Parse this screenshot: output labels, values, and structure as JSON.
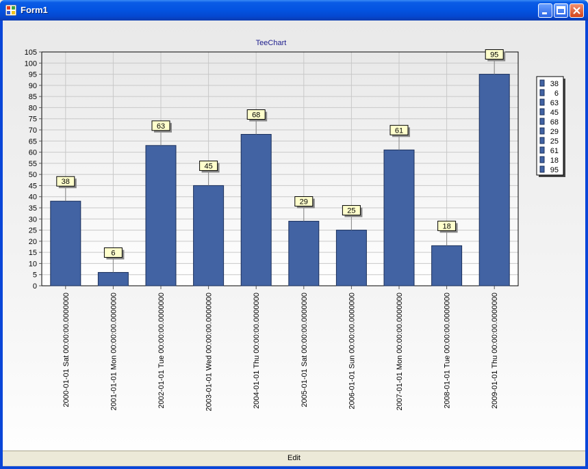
{
  "window": {
    "title": "Form1"
  },
  "footer": {
    "edit_label": "Edit"
  },
  "colors": {
    "bar": "#4263a3",
    "bar_border": "#1a2f5a",
    "label_bg": "#ffffcc",
    "title": "#1c1c8c"
  },
  "chart_data": {
    "type": "bar",
    "title": "TeeChart",
    "categories": [
      "2000-01-01 Sat 00:00:00.0000000",
      "2001-01-01 Mon 00:00:00.0000000",
      "2002-01-01 Tue 00:00:00.0000000",
      "2003-01-01 Wed 00:00:00.0000000",
      "2004-01-01 Thu 00:00:00.0000000",
      "2005-01-01 Sat 00:00:00.0000000",
      "2006-01-01 Sun 00:00:00.0000000",
      "2007-01-01 Mon 00:00:00.0000000",
      "2008-01-01 Tue 00:00:00.0000000",
      "2009-01-01 Thu 00:00:00.0000000"
    ],
    "values": [
      38,
      6,
      63,
      45,
      68,
      29,
      25,
      61,
      18,
      95
    ],
    "ylim": [
      0,
      105
    ],
    "yticks": [
      "0",
      "5",
      "10",
      "15",
      "20",
      "25",
      "30",
      "35",
      "40",
      "45",
      "50",
      "55",
      "60",
      "65",
      "70",
      "75",
      "80",
      "85",
      "90",
      "95",
      "100",
      "105"
    ],
    "grid": true,
    "legend": {
      "placement": "right",
      "entries": [
        "38",
        "6",
        "63",
        "45",
        "68",
        "29",
        "25",
        "61",
        "18",
        "95"
      ]
    },
    "data_labels": [
      "38",
      "6",
      "63",
      "45",
      "68",
      "29",
      "25",
      "61",
      "18",
      "95"
    ]
  }
}
